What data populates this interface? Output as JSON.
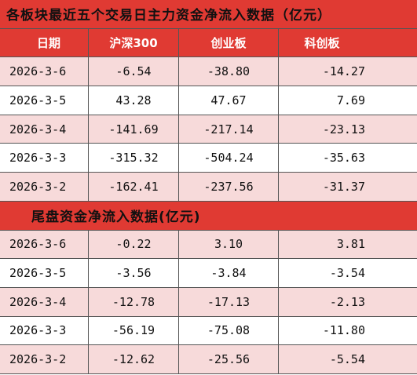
{
  "title": "各板块最近五个交易日主力资金净流入数据（亿元）",
  "table": {
    "header": [
      "日期",
      "沪深300",
      "创业板",
      "科创板"
    ],
    "rows": [
      [
        "2026-3-6",
        "-6.54",
        "-38.80",
        "-14.27"
      ],
      [
        "2026-3-5",
        "43.28",
        "47.67",
        "7.69"
      ],
      [
        "2026-3-4",
        "-141.69",
        "-217.14",
        "-23.13"
      ],
      [
        "2026-3-3",
        "-315.32",
        "-504.24",
        "-35.63"
      ],
      [
        "2026-3-2",
        "-162.41",
        "-237.56",
        "-31.37"
      ]
    ]
  },
  "tail_title": "尾盘资金净流入数据(亿元)",
  "tail_table": {
    "rows": [
      [
        "2026-3-6",
        "-0.22",
        "3.10",
        "3.81"
      ],
      [
        "2026-3-5",
        "-3.56",
        "-3.84",
        "-3.54"
      ],
      [
        "2026-3-4",
        "-12.78",
        "-17.13",
        "-2.13"
      ],
      [
        "2026-3-3",
        "-56.19",
        "-75.08",
        "-11.80"
      ],
      [
        "2026-3-2",
        "-12.62",
        "-25.56",
        "-5.54"
      ]
    ]
  }
}
